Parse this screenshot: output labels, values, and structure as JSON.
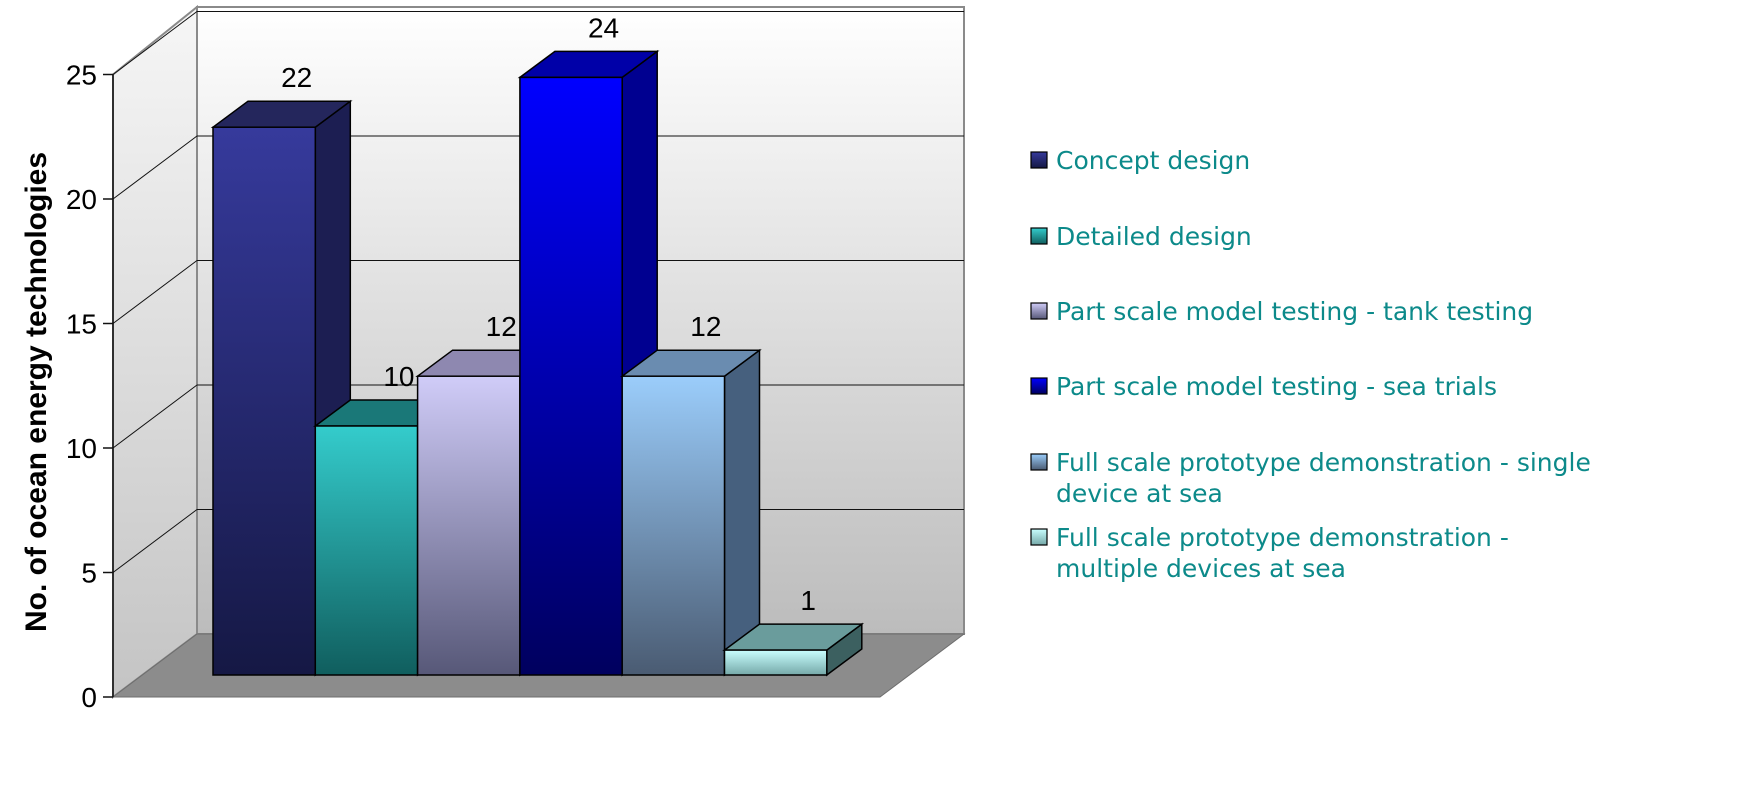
{
  "chart_data": {
    "type": "bar",
    "categories": [
      "Concept design",
      "Detailed design",
      "Part scale model testing - tank testing",
      "Part scale model testing - sea trials",
      "Full scale prototype demonstration - single device at sea",
      "Full scale prototype demonstration - multiple devices at sea"
    ],
    "values": [
      22,
      10,
      12,
      24,
      12,
      1
    ],
    "data_labels": [
      "22",
      "10",
      "12",
      "24",
      "12",
      "1"
    ],
    "ylabel": "No. of ocean energy technologies",
    "ylim": [
      0,
      25
    ],
    "yticks": [
      "0",
      "5",
      "10",
      "15",
      "20",
      "25"
    ],
    "grid": true,
    "legend_position": "right",
    "legend": [
      {
        "lines": [
          "Concept design"
        ]
      },
      {
        "lines": [
          "Detailed design"
        ]
      },
      {
        "lines": [
          "Part scale model testing - tank testing"
        ]
      },
      {
        "lines": [
          "Part scale model testing - sea trials"
        ]
      },
      {
        "lines": [
          "Full scale prototype demonstration - single",
          "device at sea"
        ]
      },
      {
        "lines": [
          "Full scale prototype demonstration -",
          "multiple devices at sea"
        ]
      }
    ],
    "colors": {
      "front_top": [
        "#363a9c",
        "#34cccc",
        "#d0ccf8",
        "#0000ff",
        "#9bcdfb",
        "#c9ffff"
      ],
      "front_bottom": [
        "#151844",
        "#105e5e",
        "#575878",
        "#00005e",
        "#4a5b72",
        "#75a8a8"
      ],
      "side": [
        "#1c1e52",
        "#156060",
        "#7a78a0",
        "#000090",
        "#46607e",
        "#3c6060"
      ],
      "top": [
        "#24265c",
        "#1a7878",
        "#8e88b0",
        "#0000a8",
        "#6a8cb0",
        "#6a9c9c"
      ],
      "legend_text": "#0c8a8a",
      "floor": "#8c8c8c"
    }
  }
}
